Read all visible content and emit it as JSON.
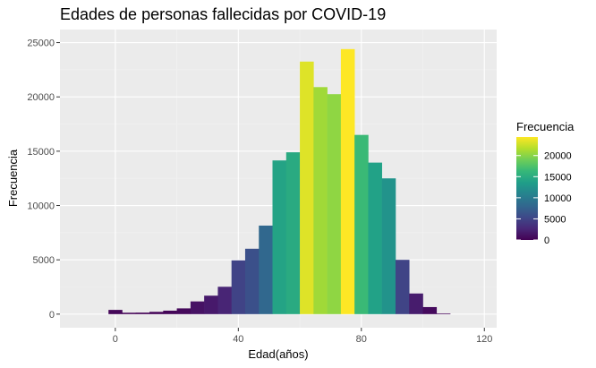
{
  "chart_data": {
    "type": "bar",
    "title": "Edades de personas fallecidas por COVID-19",
    "xlabel": "Edad(años)",
    "ylabel": "Frecuencia",
    "xlim": [
      -18,
      124
    ],
    "ylim": [
      -1250,
      26200
    ],
    "x_ticks": [
      0,
      40,
      80,
      120
    ],
    "y_ticks": [
      0,
      5000,
      10000,
      15000,
      20000,
      25000
    ],
    "grid": true,
    "bin_width": 4.44,
    "bins": [
      {
        "x": 0.0,
        "value": 390
      },
      {
        "x": 4.44,
        "value": 130
      },
      {
        "x": 8.89,
        "value": 140
      },
      {
        "x": 13.33,
        "value": 210
      },
      {
        "x": 17.78,
        "value": 320
      },
      {
        "x": 22.22,
        "value": 530
      },
      {
        "x": 26.67,
        "value": 1170
      },
      {
        "x": 31.11,
        "value": 1700
      },
      {
        "x": 35.56,
        "value": 2520
      },
      {
        "x": 40.0,
        "value": 4950
      },
      {
        "x": 44.44,
        "value": 6020
      },
      {
        "x": 48.89,
        "value": 8150
      },
      {
        "x": 53.33,
        "value": 14150
      },
      {
        "x": 57.78,
        "value": 14900
      },
      {
        "x": 62.22,
        "value": 23250
      },
      {
        "x": 66.67,
        "value": 20900
      },
      {
        "x": 71.11,
        "value": 20250
      },
      {
        "x": 75.56,
        "value": 24400
      },
      {
        "x": 80.0,
        "value": 16500
      },
      {
        "x": 84.44,
        "value": 13950
      },
      {
        "x": 88.89,
        "value": 12500
      },
      {
        "x": 93.33,
        "value": 5000
      },
      {
        "x": 97.78,
        "value": 1900
      },
      {
        "x": 102.22,
        "value": 650
      },
      {
        "x": 106.67,
        "value": 60
      }
    ],
    "legend": {
      "title": "Frecuencia",
      "placement": "right",
      "min": 0,
      "max": 24400,
      "breaks": [
        0,
        5000,
        10000,
        15000,
        20000
      ],
      "colors": [
        "#440154",
        "#482878",
        "#3e4989",
        "#31688e",
        "#26828e",
        "#1f9e89",
        "#35b779",
        "#6ece58",
        "#b5de2b",
        "#fde725"
      ]
    },
    "colors": {
      "panel_background": "#ebebeb",
      "grid_major": "#ffffff",
      "grid_minor": "#f2f2f2"
    }
  }
}
